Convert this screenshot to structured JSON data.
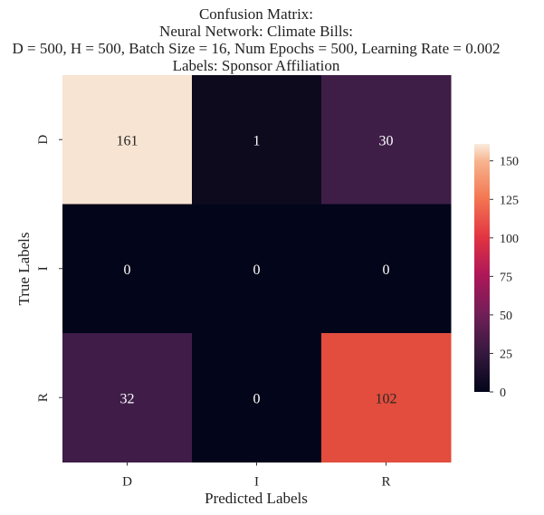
{
  "chart_data": {
    "type": "heatmap",
    "title_lines": [
      "Confusion Matrix:",
      "Neural Network: Climate Bills:",
      "D = 500, H = 500, Batch Size = 16, Num Epochs = 500, Learning Rate = 0.002",
      "Labels: Sponsor Affiliation"
    ],
    "xlabel": "Predicted Labels",
    "ylabel": "True Labels",
    "x_categories": [
      "D",
      "I",
      "R"
    ],
    "y_categories": [
      "D",
      "I",
      "R"
    ],
    "values": [
      [
        161,
        1,
        30
      ],
      [
        0,
        0,
        0
      ],
      [
        32,
        0,
        102
      ]
    ],
    "colorbar": {
      "vmin": 0,
      "vmax": 161,
      "ticks": [
        0,
        25,
        50,
        75,
        100,
        125,
        150
      ],
      "colormap": "rocket"
    },
    "cell_colors": [
      [
        "#f8e4d2",
        "#0d0a1e",
        "#3e1d47"
      ],
      [
        "#03051a",
        "#03051a",
        "#03051a"
      ],
      [
        "#3f1d48",
        "#03051a",
        "#e24d3d"
      ]
    ]
  }
}
